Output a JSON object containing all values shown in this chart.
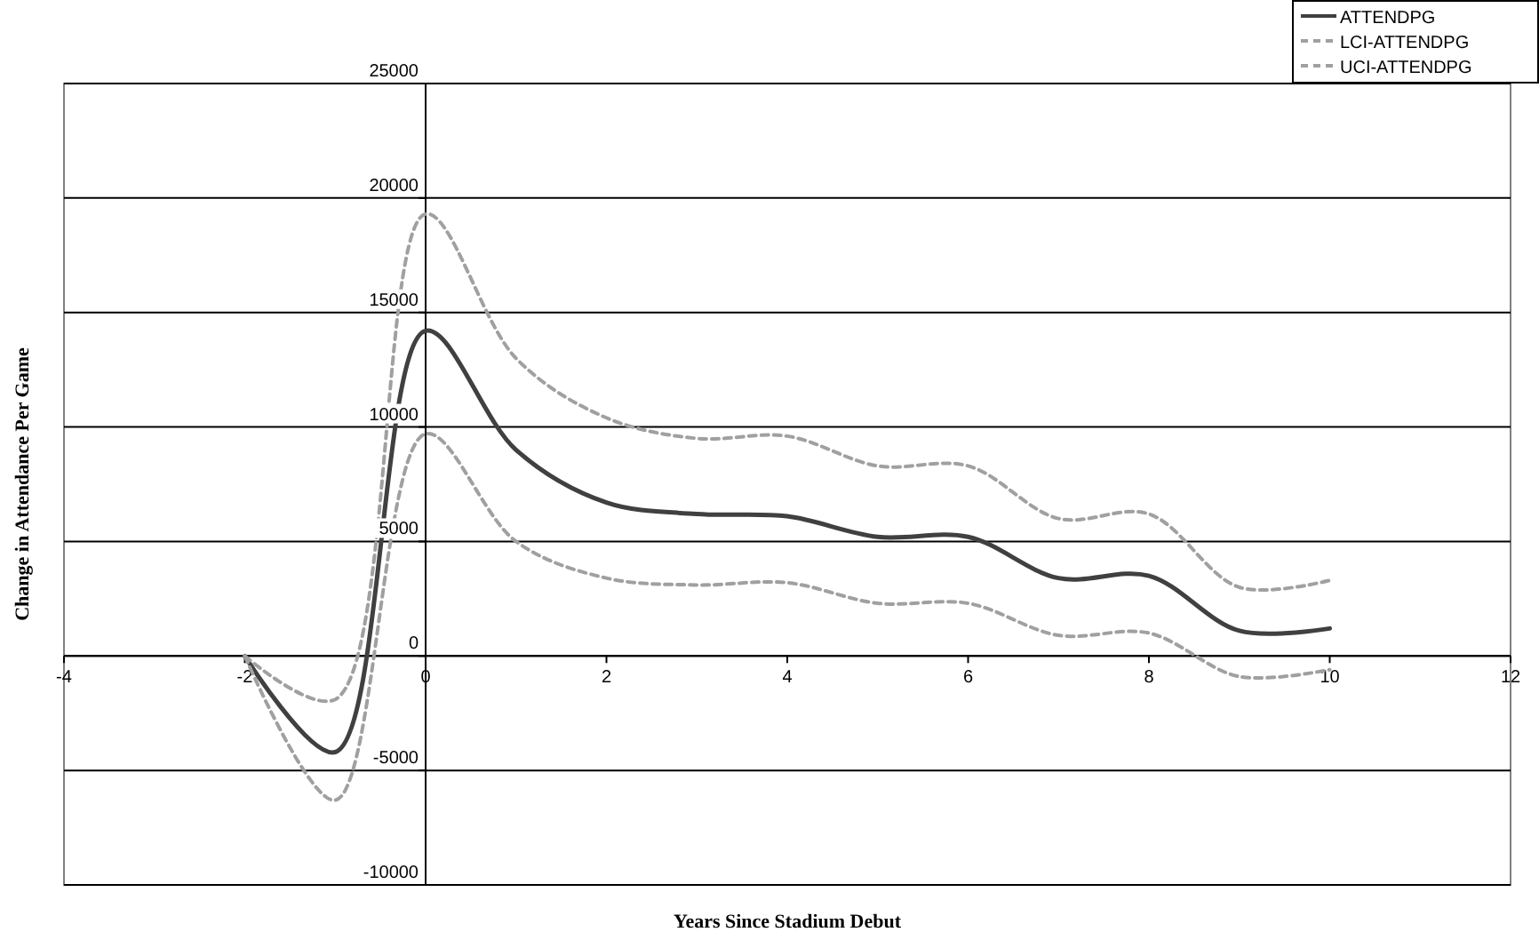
{
  "chart_data": {
    "type": "line",
    "xlabel": "Years Since Stadium Debut",
    "ylabel": "Change in Attendance Per Game",
    "x": [
      -2,
      -1,
      0,
      1,
      2,
      3,
      4,
      5,
      6,
      7,
      8,
      9,
      10
    ],
    "series": [
      {
        "name": "ATTENDPG",
        "color": "#404040",
        "line_style": "solid",
        "values": [
          0,
          -4200,
          14200,
          9000,
          6700,
          6200,
          6100,
          5200,
          5200,
          3400,
          3500,
          1100,
          1200
        ]
      },
      {
        "name": "LCI-ATTENDPG",
        "color": "#a0a0a0",
        "line_style": "dashed",
        "values": [
          0,
          -6300,
          9700,
          5000,
          3400,
          3100,
          3200,
          2300,
          2300,
          900,
          1000,
          -900,
          -600
        ]
      },
      {
        "name": "UCI-ATTENDPG",
        "color": "#a0a0a0",
        "line_style": "dashed",
        "values": [
          0,
          -1900,
          19300,
          13000,
          10400,
          9500,
          9600,
          8300,
          8300,
          6000,
          6200,
          3000,
          3300
        ]
      }
    ],
    "xlim": [
      -4,
      12
    ],
    "xticks": [
      -4,
      -2,
      0,
      2,
      4,
      6,
      8,
      10,
      12
    ],
    "ylim": [
      -10000,
      25000
    ],
    "yticks": [
      -10000,
      -5000,
      0,
      5000,
      10000,
      15000,
      20000,
      25000
    ],
    "grid": "y",
    "legend": "top right",
    "marker": "none"
  }
}
